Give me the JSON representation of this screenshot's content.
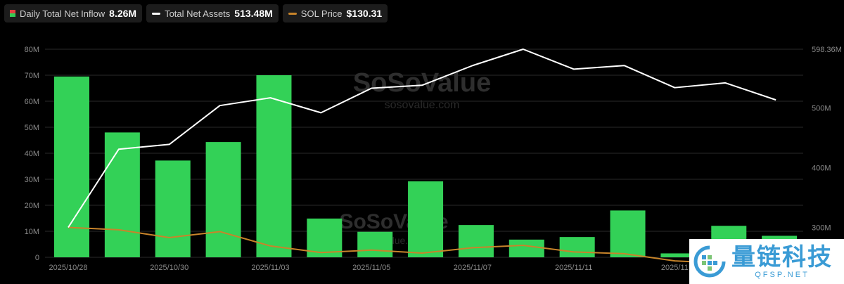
{
  "legend": {
    "inflow_label": "Daily Total Net Inflow",
    "inflow_value": "8.26M",
    "assets_label": "Total Net Assets",
    "assets_value": "513.48M",
    "sol_label": "SOL Price",
    "sol_value": "$130.31"
  },
  "colors": {
    "bar": "#33d157",
    "assets_line": "#ffffff",
    "sol_line": "#c8842a",
    "grid": "#2a2a2a",
    "axis_text": "#8a8a8a"
  },
  "watermark": {
    "name": "SoSoValue",
    "url": "sosovalue.com"
  },
  "logo": {
    "cn": "量链科技",
    "en": "QFSP.NET"
  },
  "chart_data": {
    "type": "bar",
    "x_tick_labels": [
      "2025/10/28",
      "2025/10/30",
      "2025/11/03",
      "2025/11/05",
      "2025/11/07",
      "2025/11/11",
      "2025/11"
    ],
    "x_tick_index": [
      0,
      2,
      4,
      6,
      8,
      10,
      12
    ],
    "left_axis": {
      "ticks": [
        "0",
        "10M",
        "20M",
        "30M",
        "40M",
        "50M",
        "60M",
        "70M",
        "80M"
      ],
      "ylim": [
        0,
        80
      ]
    },
    "right_axis": {
      "ticks": [
        "300M",
        "400M",
        "500M",
        "598.36M"
      ],
      "ylim": [
        250,
        598.36
      ]
    },
    "series": [
      {
        "name": "Daily Total Net Inflow",
        "kind": "bar",
        "axis": "left",
        "values": [
          69.5,
          48,
          37.2,
          44.3,
          70,
          14.9,
          9.8,
          29.2,
          12.4,
          6.8,
          7.8,
          18,
          1.5,
          12.1,
          8.26
        ]
      },
      {
        "name": "Total Net Assets",
        "kind": "line",
        "axis": "right",
        "values": [
          300,
          431,
          439,
          504,
          517,
          492,
          533,
          538,
          571,
          598.36,
          565,
          571,
          534,
          542,
          513.48
        ]
      },
      {
        "name": "SOL Price",
        "kind": "line",
        "axis": "right",
        "values": [
          300,
          296,
          283,
          293,
          269,
          258,
          262,
          257,
          266,
          270,
          259,
          256,
          244,
          240,
          242
        ]
      }
    ]
  }
}
